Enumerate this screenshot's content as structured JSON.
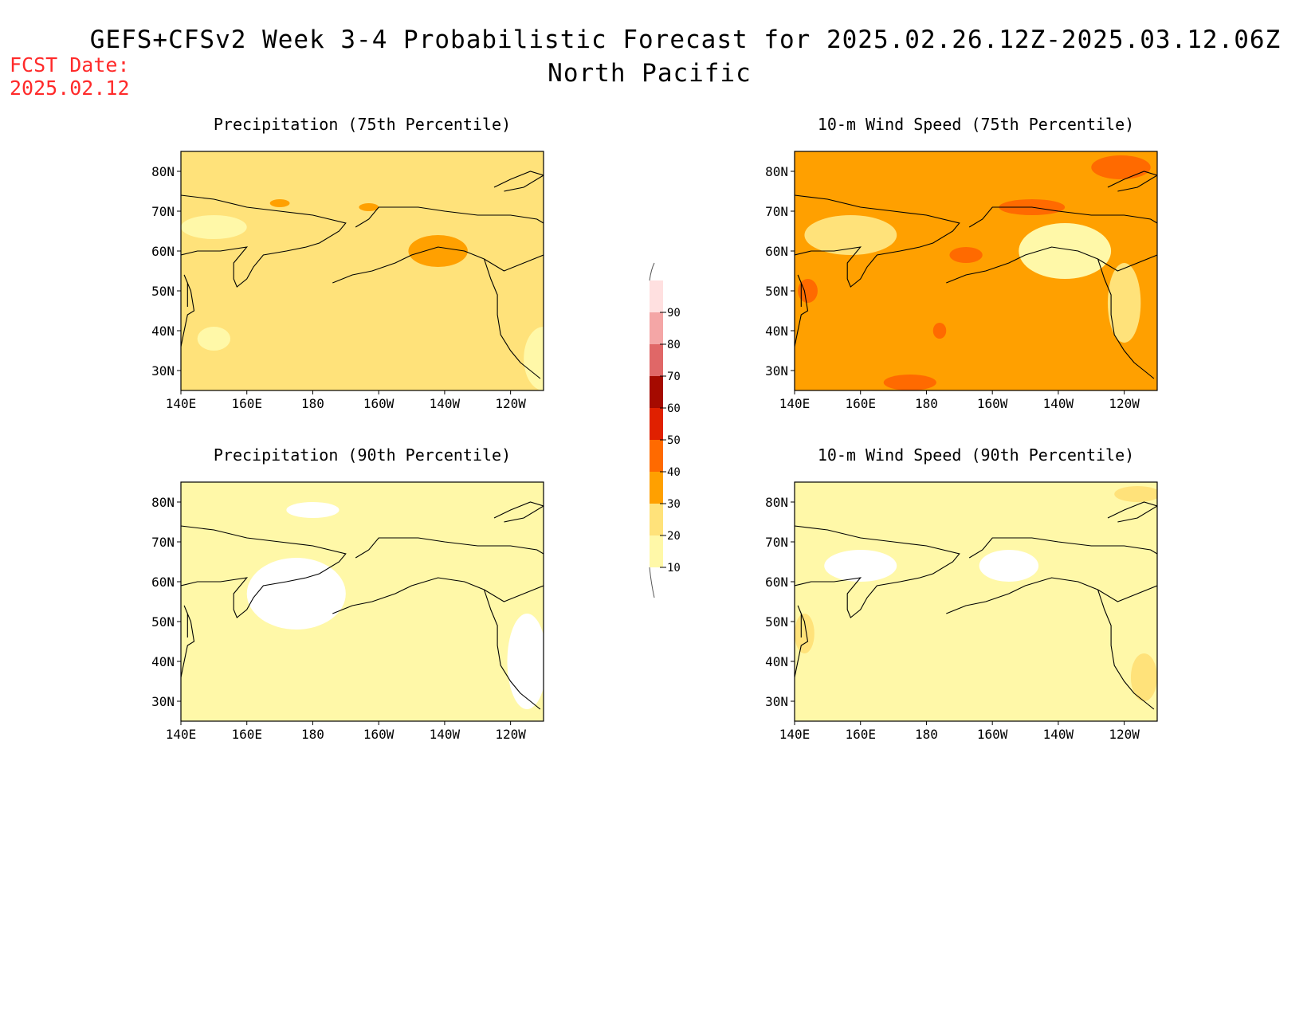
{
  "header": {
    "title": "GEFS+CFSv2 Week 3-4 Probabilistic Forecast for 2025.02.26.12Z-2025.03.12.06Z",
    "subtitle": "North Pacific",
    "fcst_label": "FCST Date:",
    "fcst_value": "2025.02.12"
  },
  "panels": [
    {
      "id": "p75",
      "title": "Precipitation (75th Percentile)",
      "base_level": 20,
      "patches": [
        {
          "lon": 218,
          "lat": 60,
          "level": 30,
          "rlon": 9,
          "rlat": 4
        },
        {
          "lon": 170,
          "lat": 72,
          "level": 30,
          "rlon": 3,
          "rlat": 1
        },
        {
          "lon": 197,
          "lat": 71,
          "level": 30,
          "rlon": 3,
          "rlat": 1
        },
        {
          "lon": 178,
          "lat": 36,
          "level": 20,
          "rlon": 10,
          "rlat": 6
        },
        {
          "lon": 150,
          "lat": 38,
          "level": 10,
          "rlon": 5,
          "rlat": 3
        },
        {
          "lon": 250,
          "lat": 33,
          "level": 10,
          "rlon": 6,
          "rlat": 8
        },
        {
          "lon": 150,
          "lat": 66,
          "level": 10,
          "rlon": 10,
          "rlat": 3
        }
      ]
    },
    {
      "id": "w75",
      "title": "10-m Wind Speed (75th Percentile)",
      "base_level": 30,
      "patches": [
        {
          "lon": 157,
          "lat": 64,
          "level": 20,
          "rlon": 14,
          "rlat": 5
        },
        {
          "lon": 222,
          "lat": 60,
          "level": 10,
          "rlon": 14,
          "rlat": 7
        },
        {
          "lon": 240,
          "lat": 47,
          "level": 20,
          "rlon": 5,
          "rlat": 10
        },
        {
          "lon": 144,
          "lat": 50,
          "level": 40,
          "rlon": 3,
          "rlat": 3
        },
        {
          "lon": 239,
          "lat": 81,
          "level": 40,
          "rlon": 9,
          "rlat": 3
        },
        {
          "lon": 212,
          "lat": 71,
          "level": 40,
          "rlon": 10,
          "rlat": 2
        },
        {
          "lon": 192,
          "lat": 59,
          "level": 40,
          "rlon": 5,
          "rlat": 2
        },
        {
          "lon": 184,
          "lat": 40,
          "level": 40,
          "rlon": 2,
          "rlat": 2
        },
        {
          "lon": 175,
          "lat": 27,
          "level": 40,
          "rlon": 8,
          "rlat": 2
        }
      ]
    },
    {
      "id": "p90",
      "title": "Precipitation (90th Percentile)",
      "base_level": 10,
      "patches": [
        {
          "lon": 175,
          "lat": 57,
          "level": 0,
          "rlon": 15,
          "rlat": 9
        },
        {
          "lon": 215,
          "lat": 45,
          "level": 10,
          "rlon": 9,
          "rlat": 8
        },
        {
          "lon": 245,
          "lat": 40,
          "level": 0,
          "rlon": 6,
          "rlat": 12
        },
        {
          "lon": 180,
          "lat": 78,
          "level": 0,
          "rlon": 8,
          "rlat": 2
        }
      ]
    },
    {
      "id": "w90",
      "title": "10-m Wind Speed (90th Percentile)",
      "base_level": 10,
      "patches": [
        {
          "lon": 160,
          "lat": 64,
          "level": 0,
          "rlon": 11,
          "rlat": 4
        },
        {
          "lon": 205,
          "lat": 64,
          "level": 0,
          "rlon": 9,
          "rlat": 4
        },
        {
          "lon": 143,
          "lat": 47,
          "level": 20,
          "rlon": 3,
          "rlat": 5
        },
        {
          "lon": 244,
          "lat": 82,
          "level": 20,
          "rlon": 7,
          "rlat": 2
        },
        {
          "lon": 246,
          "lat": 36,
          "level": 20,
          "rlon": 4,
          "rlat": 6
        }
      ]
    }
  ],
  "colorbar": {
    "levels": [
      10,
      20,
      30,
      40,
      50,
      60,
      70,
      80,
      90
    ],
    "colors": [
      "#fff8a8",
      "#ffe27a",
      "#ffa000",
      "#ff6a00",
      "#e02000",
      "#a50a00",
      "#e06767",
      "#f4a6a6",
      "#ffe0e0"
    ]
  },
  "axes": {
    "lon_ticks": [
      "140E",
      "160E",
      "180",
      "160W",
      "140W",
      "120W"
    ],
    "lat_ticks": [
      "80N",
      "70N",
      "60N",
      "50N",
      "40N",
      "30N"
    ]
  }
}
